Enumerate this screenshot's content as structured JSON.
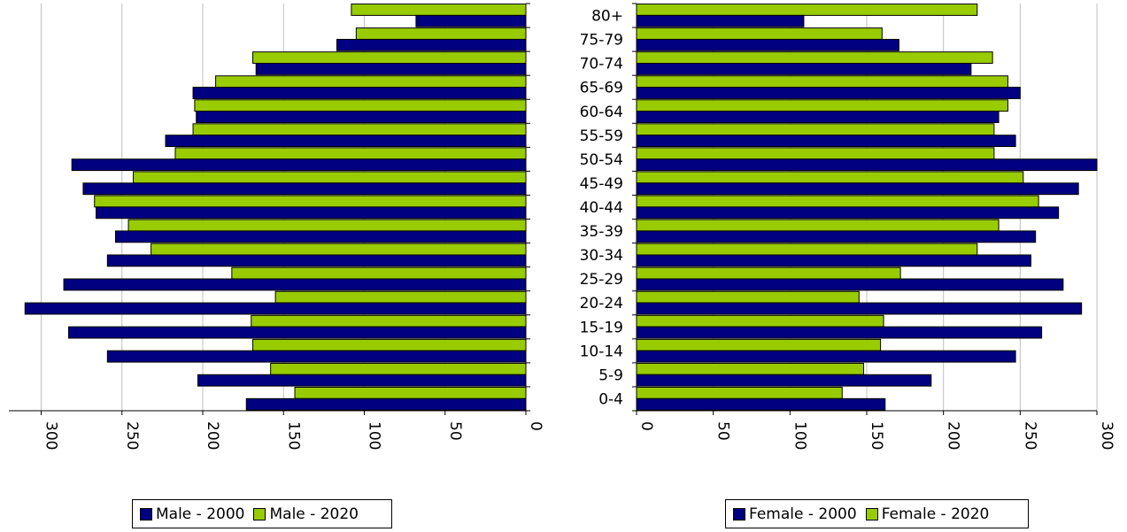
{
  "charts": [
    {
      "type": "bar",
      "orientation": "horizontal",
      "direction": "reversed",
      "categories": [
        "80+",
        "75-79",
        "70-74",
        "65-69",
        "60-64",
        "55-59",
        "50-54",
        "45-49",
        "40-44",
        "35-39",
        "30-34",
        "25-29",
        "20-24",
        "15-19",
        "10-14",
        "5-9",
        "0-4"
      ],
      "series": [
        {
          "name": "Male - 2000",
          "color": "#000080",
          "values": [
            68,
            117,
            167,
            206,
            204,
            223,
            281,
            274,
            266,
            254,
            259,
            286,
            310,
            283,
            259,
            203,
            173
          ]
        },
        {
          "name": "Male - 2020",
          "color": "#99cc00",
          "values": [
            108,
            105,
            169,
            192,
            205,
            206,
            217,
            243,
            267,
            246,
            232,
            182,
            155,
            170,
            169,
            158,
            143
          ]
        }
      ],
      "xlim": [
        0,
        320
      ],
      "xticks": [
        "0",
        "50",
        "100",
        "150",
        "200",
        "250",
        "300"
      ],
      "grid": true,
      "legend_position": "bottom"
    },
    {
      "type": "bar",
      "orientation": "horizontal",
      "direction": "normal",
      "categories": [
        "80+",
        "75-79",
        "70-74",
        "65-69",
        "60-64",
        "55-59",
        "50-54",
        "45-49",
        "40-44",
        "35-39",
        "30-34",
        "25-29",
        "20-24",
        "15-19",
        "10-14",
        "5-9",
        "0-4"
      ],
      "series": [
        {
          "name": "Female - 2000",
          "color": "#000080",
          "values": [
            109,
            171,
            218,
            250,
            236,
            247,
            300,
            288,
            275,
            260,
            257,
            278,
            290,
            264,
            247,
            192,
            162
          ]
        },
        {
          "name": "Female - 2020",
          "color": "#99cc00",
          "values": [
            222,
            160,
            232,
            242,
            242,
            233,
            233,
            252,
            262,
            236,
            222,
            172,
            145,
            161,
            159,
            148,
            134
          ]
        }
      ],
      "xlim": [
        0,
        300
      ],
      "xticks": [
        "0",
        "50",
        "100",
        "150",
        "200",
        "250",
        "300"
      ],
      "grid": true,
      "legend_position": "bottom"
    }
  ],
  "legend_left": [
    "Male - 2000",
    "Male - 2020"
  ],
  "legend_right": [
    "Female - 2000",
    "Female - 2020"
  ]
}
